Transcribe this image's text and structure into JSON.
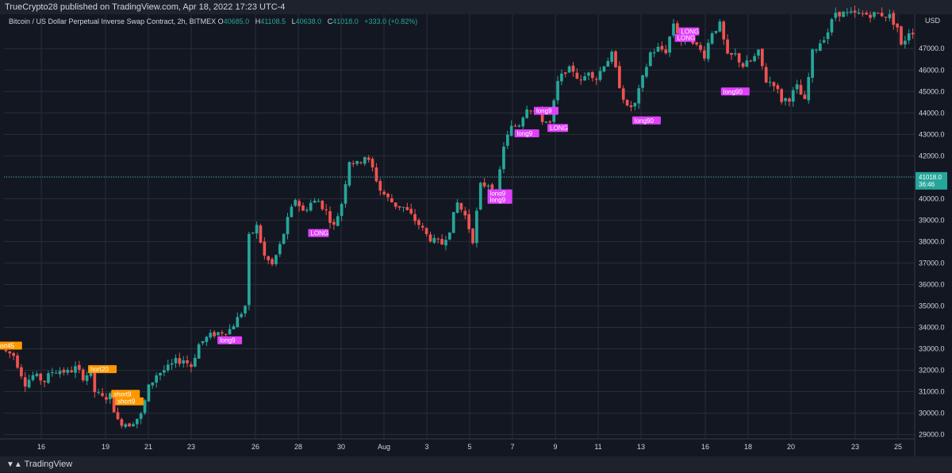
{
  "header": {
    "published": "TrueCrypto28 published on TradingView.com, Apr 18, 2022 17:23 UTC-4"
  },
  "symbol": {
    "name": "Bitcoin / US Dollar Perpetual Inverse Swap Contract, 2h, BITMEX",
    "open_label": "O",
    "open": "40685.0",
    "high_label": "H",
    "high": "41108.5",
    "low_label": "L",
    "low": "40638.0",
    "close_label": "C",
    "close": "41018.0",
    "change": "+333.0 (+0.82%)"
  },
  "price_axis": {
    "currency": "USD"
  },
  "last_price": {
    "value": "41018.0",
    "countdown": "36:46"
  },
  "footer": {
    "brand": "TradingView"
  },
  "colors": {
    "up": "#26a69a",
    "down": "#ef5350",
    "long": "#e040fb",
    "short": "#ff9800",
    "background": "#131722"
  },
  "chart_data": {
    "type": "candlestick",
    "ylim": [
      28800,
      48600
    ],
    "y_ticks": [
      29000,
      30000,
      31000,
      32000,
      33000,
      34000,
      35000,
      36000,
      37000,
      38000,
      39000,
      40000,
      41000,
      42000,
      43000,
      44000,
      45000,
      46000,
      47000
    ],
    "x_ticks": [
      "16",
      "19",
      "21",
      "23",
      "26",
      "28",
      "30",
      "Aug",
      "3",
      "5",
      "7",
      "9",
      "11",
      "13",
      "16",
      "18",
      "20",
      "23",
      "25"
    ],
    "price_path": [
      [
        0,
        32950
      ],
      [
        3,
        32700
      ],
      [
        6,
        31400
      ],
      [
        8,
        31750
      ],
      [
        11,
        31500
      ],
      [
        13,
        31950
      ],
      [
        15,
        32000
      ],
      [
        17,
        31900
      ],
      [
        19,
        32100
      ],
      [
        21,
        31700
      ],
      [
        23,
        31900
      ],
      [
        24,
        31000
      ],
      [
        26,
        30700
      ],
      [
        28,
        30800
      ],
      [
        30,
        29600
      ],
      [
        33,
        29500
      ],
      [
        36,
        29900
      ],
      [
        38,
        31200
      ],
      [
        40,
        31800
      ],
      [
        43,
        32100
      ],
      [
        45,
        32400
      ],
      [
        47,
        32500
      ],
      [
        49,
        32200
      ],
      [
        51,
        33200
      ],
      [
        53,
        33500
      ],
      [
        55,
        33700
      ],
      [
        57,
        33800
      ],
      [
        59,
        33900
      ],
      [
        61,
        34400
      ],
      [
        63,
        35000
      ],
      [
        64,
        38200
      ],
      [
        66,
        38700
      ],
      [
        68,
        37300
      ],
      [
        70,
        36900
      ],
      [
        72,
        37800
      ],
      [
        74,
        39000
      ],
      [
        76,
        40000
      ],
      [
        78,
        39400
      ],
      [
        80,
        39800
      ],
      [
        82,
        39900
      ],
      [
        84,
        39400
      ],
      [
        86,
        38700
      ],
      [
        88,
        39800
      ],
      [
        90,
        41800
      ],
      [
        92,
        41600
      ],
      [
        94,
        42000
      ],
      [
        96,
        41400
      ],
      [
        98,
        40400
      ],
      [
        100,
        40000
      ],
      [
        102,
        39700
      ],
      [
        104,
        39600
      ],
      [
        106,
        39200
      ],
      [
        108,
        38800
      ],
      [
        110,
        38300
      ],
      [
        112,
        38000
      ],
      [
        114,
        37900
      ],
      [
        116,
        38600
      ],
      [
        118,
        39800
      ],
      [
        120,
        39200
      ],
      [
        122,
        38100
      ],
      [
        124,
        40600
      ],
      [
        126,
        40700
      ],
      [
        128,
        40100
      ],
      [
        130,
        42500
      ],
      [
        132,
        43300
      ],
      [
        134,
        43500
      ],
      [
        136,
        44300
      ],
      [
        138,
        44100
      ],
      [
        140,
        43700
      ],
      [
        142,
        43500
      ],
      [
        144,
        45400
      ],
      [
        146,
        46000
      ],
      [
        148,
        46000
      ],
      [
        150,
        45400
      ],
      [
        152,
        46000
      ],
      [
        154,
        45600
      ],
      [
        156,
        46300
      ],
      [
        158,
        46700
      ],
      [
        160,
        45300
      ],
      [
        162,
        44200
      ],
      [
        164,
        44400
      ],
      [
        166,
        45600
      ],
      [
        168,
        46800
      ],
      [
        170,
        47000
      ],
      [
        172,
        46900
      ],
      [
        174,
        48200
      ],
      [
        176,
        47400
      ],
      [
        178,
        47700
      ],
      [
        180,
        47100
      ],
      [
        182,
        46700
      ],
      [
        184,
        47800
      ],
      [
        186,
        48100
      ],
      [
        188,
        46600
      ],
      [
        190,
        46700
      ],
      [
        192,
        46200
      ],
      [
        194,
        46400
      ],
      [
        196,
        46800
      ],
      [
        198,
        45500
      ],
      [
        200,
        45400
      ],
      [
        202,
        44600
      ],
      [
        204,
        44700
      ],
      [
        206,
        45200
      ],
      [
        208,
        44500
      ],
      [
        210,
        46800
      ],
      [
        212,
        47300
      ],
      [
        214,
        47800
      ],
      [
        216,
        48700
      ],
      [
        219,
        48600
      ],
      [
        222,
        48600
      ],
      [
        225,
        48600
      ],
      [
        228,
        48600
      ],
      [
        230,
        48500
      ],
      [
        232,
        48000
      ],
      [
        233,
        47100
      ],
      [
        235,
        47800
      ]
    ],
    "signals": [
      {
        "label": "ort45",
        "type": "short",
        "bar": 1,
        "price": 33150
      },
      {
        "label": "hort20",
        "type": "short",
        "bar": 25,
        "price": 32050
      },
      {
        "label": "short9",
        "type": "short",
        "bar": 31,
        "price": 30900
      },
      {
        "label": "short9",
        "type": "short",
        "bar": 32,
        "price": 30550
      },
      {
        "label": "long9",
        "type": "long",
        "bar": 58,
        "price": 33400
      },
      {
        "label": "LONG",
        "type": "long",
        "bar": 81,
        "price": 38400
      },
      {
        "label": "long9",
        "type": "long",
        "bar": 128,
        "price": 40250
      },
      {
        "label": "long9",
        "type": "long",
        "bar": 128,
        "price": 39950
      },
      {
        "label": "long9",
        "type": "long",
        "bar": 135,
        "price": 43050
      },
      {
        "label": "long9",
        "type": "long",
        "bar": 140,
        "price": 44100
      },
      {
        "label": "LONG",
        "type": "long",
        "bar": 143,
        "price": 43300
      },
      {
        "label": "long90",
        "type": "long",
        "bar": 166,
        "price": 43650
      },
      {
        "label": "LONG",
        "type": "long",
        "bar": 177,
        "price": 47800
      },
      {
        "label": "LONG",
        "type": "long",
        "bar": 176,
        "price": 47500
      },
      {
        "label": "long90",
        "type": "long",
        "bar": 189,
        "price": 45000
      }
    ]
  }
}
